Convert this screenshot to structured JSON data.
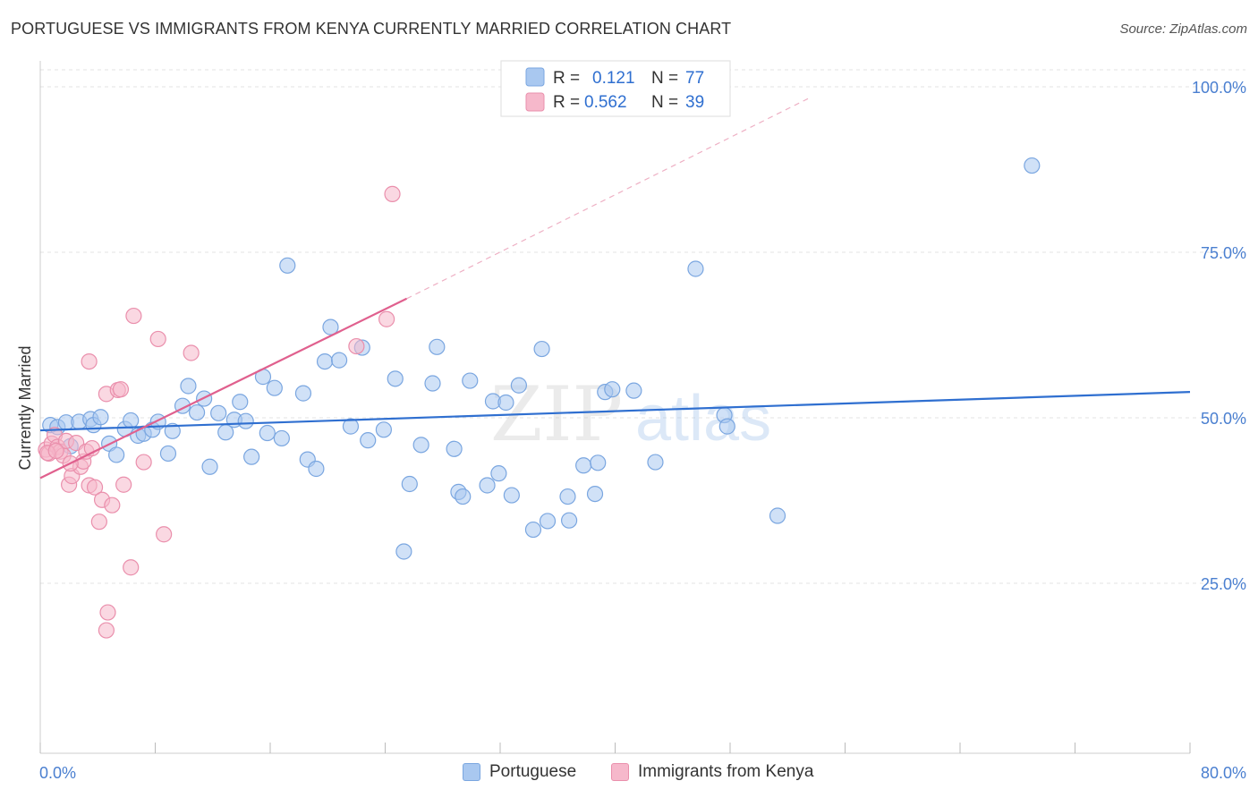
{
  "title": "PORTUGUESE VS IMMIGRANTS FROM KENYA CURRENTLY MARRIED CORRELATION CHART",
  "source": "Source: ZipAtlas.com",
  "watermark": {
    "zip": "ZIP",
    "atlas": "atlas"
  },
  "colors": {
    "blue_fill": "#a9c8f0",
    "blue_stroke": "#7aa6e0",
    "blue_line": "#2f6fd0",
    "pink_fill": "#f6b8cb",
    "pink_stroke": "#ea8fac",
    "pink_line": "#e0608e",
    "grid": "#e3e3e3",
    "tick_text": "#4a7fd0"
  },
  "legend": {
    "rows": [
      {
        "r_label": "R =",
        "r_value": "0.121",
        "n_label": "N =",
        "n_value": "77"
      },
      {
        "r_label": "R =",
        "r_value": "0.562",
        "n_label": "N =",
        "n_value": "39"
      }
    ]
  },
  "bottom_legend": {
    "series1": "Portuguese",
    "series2": "Immigrants from Kenya"
  },
  "chart_data": {
    "type": "scatter",
    "title": "PORTUGUESE VS IMMIGRANTS FROM KENYA CURRENTLY MARRIED CORRELATION CHART",
    "xlabel": "",
    "ylabel": "Currently Married",
    "xlim": [
      0,
      80
    ],
    "ylim": [
      0,
      105
    ],
    "x_tick_labels": [
      "0.0%",
      "80.0%"
    ],
    "y_ticks": [
      25,
      50,
      75,
      100
    ],
    "y_tick_labels": [
      "25.0%",
      "50.0%",
      "75.0%",
      "100.0%"
    ],
    "grid": true,
    "legend_position": "top-center",
    "series": [
      {
        "name": "Portuguese",
        "color": "#a9c8f0",
        "trend": {
          "x": [
            0,
            80
          ],
          "y": [
            48.1,
            53.9
          ]
        },
        "points": [
          [
            0.7,
            48.9
          ],
          [
            1.2,
            48.6
          ],
          [
            1.8,
            49.3
          ],
          [
            2.1,
            45.7
          ],
          [
            2.7,
            49.4
          ],
          [
            3.5,
            49.8
          ],
          [
            3.7,
            48.9
          ],
          [
            4.2,
            50.1
          ],
          [
            4.8,
            46.1
          ],
          [
            5.3,
            44.4
          ],
          [
            5.9,
            48.3
          ],
          [
            6.3,
            49.6
          ],
          [
            6.8,
            47.3
          ],
          [
            7.2,
            47.6
          ],
          [
            7.8,
            48.2
          ],
          [
            8.2,
            49.4
          ],
          [
            8.9,
            44.6
          ],
          [
            9.2,
            48.0
          ],
          [
            9.9,
            51.8
          ],
          [
            10.3,
            54.8
          ],
          [
            10.9,
            50.8
          ],
          [
            11.4,
            52.9
          ],
          [
            11.8,
            42.6
          ],
          [
            12.4,
            50.7
          ],
          [
            12.9,
            47.8
          ],
          [
            13.5,
            49.7
          ],
          [
            13.9,
            52.4
          ],
          [
            14.3,
            49.5
          ],
          [
            14.7,
            44.1
          ],
          [
            15.5,
            56.2
          ],
          [
            15.8,
            47.7
          ],
          [
            16.3,
            54.5
          ],
          [
            16.8,
            46.9
          ],
          [
            17.2,
            73.0
          ],
          [
            18.3,
            53.7
          ],
          [
            18.6,
            43.7
          ],
          [
            19.2,
            42.3
          ],
          [
            19.8,
            58.5
          ],
          [
            20.2,
            63.7
          ],
          [
            20.8,
            58.7
          ],
          [
            21.6,
            48.7
          ],
          [
            22.4,
            60.6
          ],
          [
            22.8,
            46.6
          ],
          [
            23.9,
            48.2
          ],
          [
            24.7,
            55.9
          ],
          [
            25.7,
            40.0
          ],
          [
            25.3,
            29.8
          ],
          [
            26.5,
            45.9
          ],
          [
            27.3,
            55.2
          ],
          [
            27.6,
            60.7
          ],
          [
            28.8,
            45.3
          ],
          [
            29.1,
            38.8
          ],
          [
            29.4,
            38.1
          ],
          [
            29.9,
            55.6
          ],
          [
            31.1,
            39.8
          ],
          [
            31.5,
            52.5
          ],
          [
            31.9,
            41.6
          ],
          [
            32.4,
            52.3
          ],
          [
            32.8,
            38.3
          ],
          [
            33.3,
            54.9
          ],
          [
            34.3,
            33.1
          ],
          [
            34.9,
            60.4
          ],
          [
            35.3,
            34.4
          ],
          [
            36.7,
            38.1
          ],
          [
            37.8,
            42.8
          ],
          [
            38.6,
            38.5
          ],
          [
            38.8,
            43.2
          ],
          [
            39.3,
            53.9
          ],
          [
            39.8,
            54.3
          ],
          [
            41.3,
            54.1
          ],
          [
            42.8,
            43.3
          ],
          [
            45.6,
            72.5
          ],
          [
            47.6,
            50.4
          ],
          [
            47.8,
            48.7
          ],
          [
            51.3,
            35.2
          ],
          [
            69.0,
            88.1
          ],
          [
            36.8,
            34.5
          ]
        ]
      },
      {
        "name": "Immigrants from Kenya",
        "color": "#f6b8cb",
        "trend": {
          "x": [
            0,
            25.5
          ],
          "y": [
            40.9,
            68.0
          ]
        },
        "trend_extension": {
          "x": [
            25.5,
            53.6
          ],
          "y": [
            68.0,
            98.4
          ]
        },
        "points": [
          [
            0.4,
            45.2
          ],
          [
            0.6,
            44.6
          ],
          [
            0.8,
            46.1
          ],
          [
            1.0,
            47.4
          ],
          [
            1.2,
            45.6
          ],
          [
            1.4,
            44.9
          ],
          [
            1.6,
            44.3
          ],
          [
            1.8,
            46.5
          ],
          [
            2.0,
            39.9
          ],
          [
            2.2,
            41.2
          ],
          [
            2.5,
            46.2
          ],
          [
            2.8,
            42.6
          ],
          [
            3.0,
            43.4
          ],
          [
            3.2,
            44.9
          ],
          [
            3.4,
            39.8
          ],
          [
            3.6,
            45.4
          ],
          [
            3.8,
            39.5
          ],
          [
            4.1,
            34.3
          ],
          [
            4.3,
            37.6
          ],
          [
            4.6,
            53.6
          ],
          [
            5.0,
            36.8
          ],
          [
            5.4,
            54.2
          ],
          [
            5.6,
            54.3
          ],
          [
            5.8,
            39.9
          ],
          [
            6.3,
            27.4
          ],
          [
            6.5,
            65.4
          ],
          [
            7.2,
            43.3
          ],
          [
            8.2,
            61.9
          ],
          [
            8.6,
            32.4
          ],
          [
            10.5,
            59.8
          ],
          [
            3.4,
            58.5
          ],
          [
            4.7,
            20.6
          ],
          [
            4.6,
            17.9
          ],
          [
            22.0,
            60.8
          ],
          [
            24.1,
            64.9
          ],
          [
            24.5,
            83.8
          ],
          [
            0.5,
            44.7
          ],
          [
            1.1,
            45.0
          ],
          [
            2.1,
            43.1
          ]
        ]
      }
    ]
  }
}
